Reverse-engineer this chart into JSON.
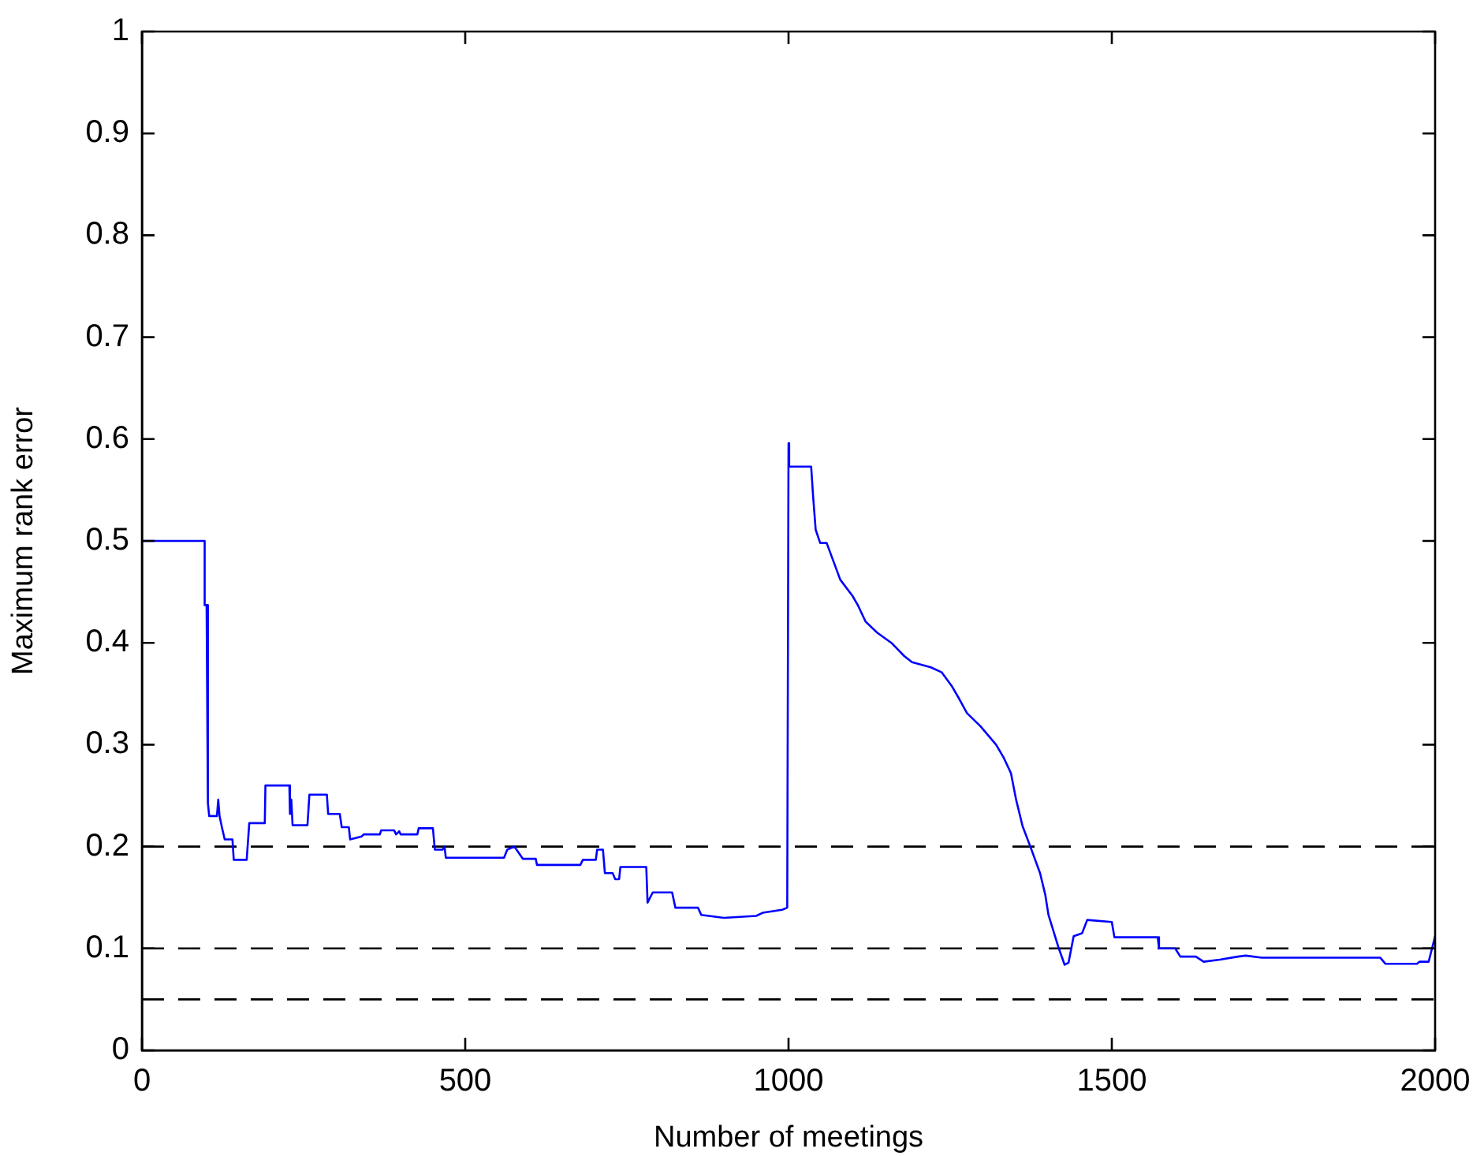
{
  "chart_data": {
    "type": "line",
    "xlabel": "Number of meetings",
    "ylabel": "Maximum rank error",
    "xlim": [
      0,
      2000
    ],
    "xticks": [
      0,
      500,
      1000,
      1500,
      2000
    ],
    "ylim": [
      0,
      1
    ],
    "yticks": [
      0,
      0.1,
      0.2,
      0.3,
      0.4,
      0.5,
      0.6,
      0.7,
      0.8,
      0.9,
      1
    ],
    "grid": false,
    "legend": false,
    "marker": "none",
    "line_style": "solid",
    "x": [
      0,
      97,
      97,
      100,
      102,
      104,
      116,
      118,
      120,
      124,
      128,
      140,
      142,
      162,
      166,
      190,
      191,
      228,
      229,
      231,
      233,
      256,
      259,
      286,
      288,
      306,
      309,
      320,
      322,
      340,
      343,
      368,
      370,
      390,
      393,
      398,
      400,
      426,
      428,
      450,
      453,
      465,
      468,
      470,
      560,
      565,
      576,
      589,
      609,
      611,
      678,
      682,
      702,
      704,
      713,
      716,
      728,
      732,
      738,
      740,
      780,
      782,
      790,
      820,
      825,
      860,
      865,
      900,
      950,
      960,
      990,
      998,
      1000,
      1001,
      1035,
      1038,
      1042,
      1049,
      1059,
      1080,
      1099,
      1108,
      1119,
      1137,
      1159,
      1179,
      1191,
      1220,
      1237,
      1252,
      1264,
      1276,
      1297,
      1321,
      1333,
      1344,
      1352,
      1362,
      1374,
      1389,
      1397,
      1402,
      1417,
      1427,
      1433,
      1441,
      1454,
      1462,
      1500,
      1504,
      1571,
      1573,
      1598,
      1606,
      1630,
      1642,
      1667,
      1695,
      1707,
      1732,
      1915,
      1923,
      1972,
      1976,
      1990,
      1996,
      2000
    ],
    "series": [
      {
        "color": "#0000ff",
        "values": [
          0.5,
          0.5,
          0.437,
          0.437,
          0.243,
          0.23,
          0.23,
          0.246,
          0.23,
          0.218,
          0.207,
          0.207,
          0.187,
          0.187,
          0.223,
          0.223,
          0.26,
          0.26,
          0.232,
          0.246,
          0.221,
          0.221,
          0.251,
          0.251,
          0.232,
          0.232,
          0.219,
          0.219,
          0.207,
          0.21,
          0.212,
          0.212,
          0.216,
          0.216,
          0.212,
          0.215,
          0.212,
          0.212,
          0.218,
          0.218,
          0.197,
          0.197,
          0.2,
          0.189,
          0.189,
          0.197,
          0.2,
          0.188,
          0.188,
          0.182,
          0.182,
          0.187,
          0.187,
          0.197,
          0.197,
          0.174,
          0.174,
          0.168,
          0.168,
          0.18,
          0.18,
          0.145,
          0.155,
          0.155,
          0.14,
          0.14,
          0.133,
          0.13,
          0.132,
          0.135,
          0.138,
          0.14,
          0.596,
          0.573,
          0.573,
          0.544,
          0.511,
          0.498,
          0.498,
          0.462,
          0.446,
          0.436,
          0.421,
          0.41,
          0.4,
          0.387,
          0.381,
          0.376,
          0.371,
          0.358,
          0.345,
          0.331,
          0.318,
          0.3,
          0.287,
          0.272,
          0.246,
          0.22,
          0.2,
          0.174,
          0.153,
          0.133,
          0.102,
          0.084,
          0.086,
          0.112,
          0.115,
          0.128,
          0.126,
          0.111,
          0.111,
          0.1,
          0.1,
          0.092,
          0.092,
          0.087,
          0.089,
          0.092,
          0.093,
          0.091,
          0.091,
          0.085,
          0.085,
          0.087,
          0.087,
          0.102,
          0.112
        ]
      }
    ],
    "ref_lines": [
      {
        "axis": "y",
        "value": 0.2,
        "color": "#000000",
        "line_style": "dashed"
      },
      {
        "axis": "y",
        "value": 0.1,
        "color": "#000000",
        "line_style": "dashed"
      },
      {
        "axis": "y",
        "value": 0.05,
        "color": "#000000",
        "line_style": "dashed"
      }
    ]
  }
}
